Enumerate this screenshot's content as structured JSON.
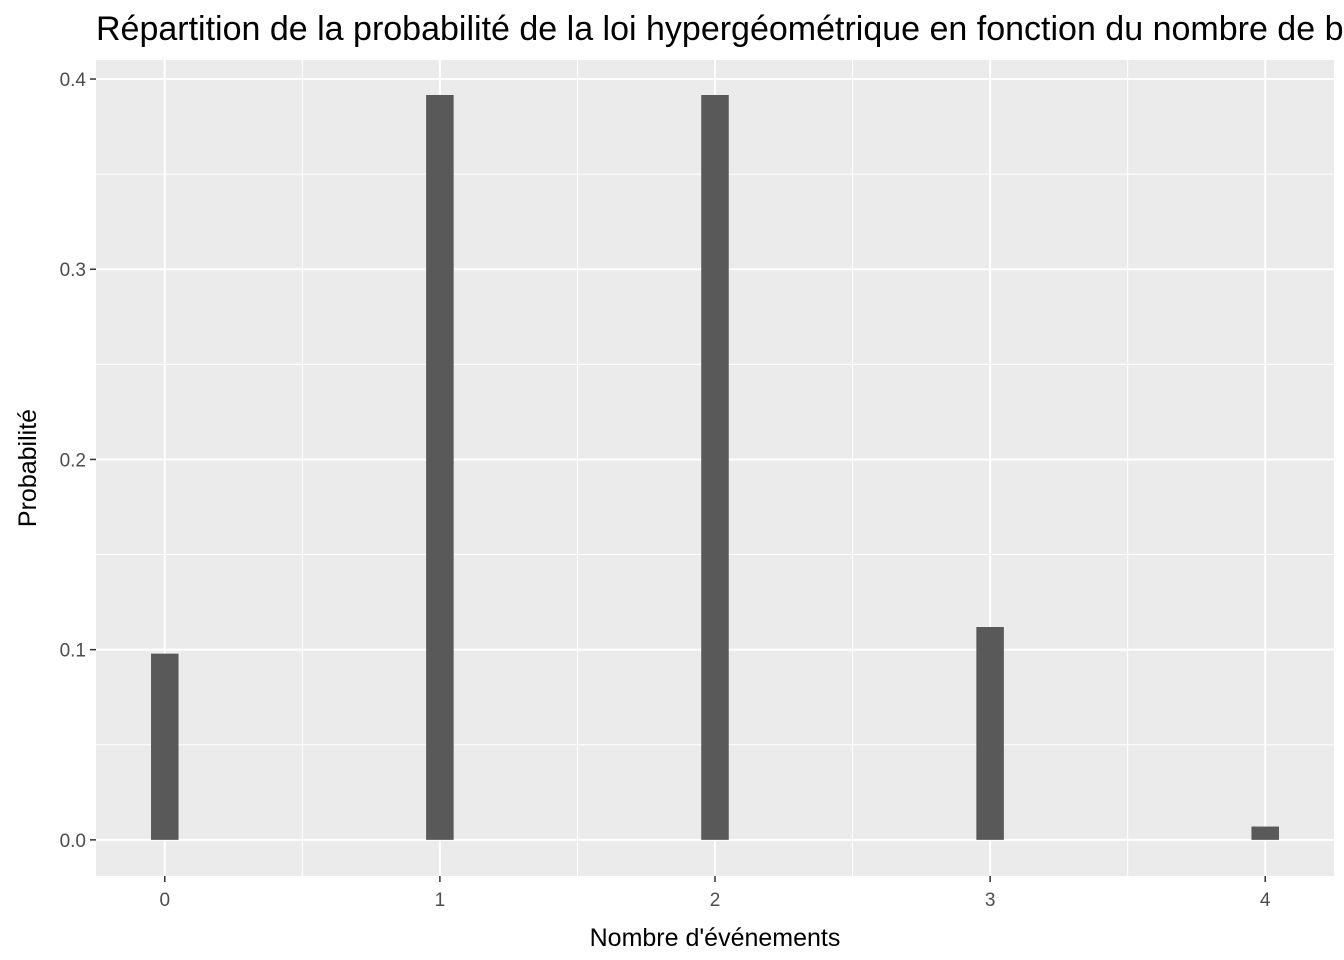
{
  "chart_data": {
    "type": "bar",
    "title": "Répartition de la probabilité de la loi hypergéométrique en fonction du nombre de bo",
    "xlabel": "Nombre d'événements",
    "ylabel": "Probabilité",
    "categories": [
      "0",
      "1",
      "2",
      "3",
      "4"
    ],
    "x": [
      0,
      1,
      2,
      3,
      4
    ],
    "values": [
      0.0979,
      0.3916,
      0.3916,
      0.1119,
      0.007
    ],
    "xlim": [
      -0.25,
      4.25
    ],
    "ylim": [
      -0.019,
      0.41
    ],
    "yticks": [
      0.0,
      0.1,
      0.2,
      0.3,
      0.4
    ],
    "ytick_labels": [
      "0.0",
      "0.1",
      "0.2",
      "0.3",
      "0.4"
    ],
    "grid": true,
    "colors": {
      "panel_background": "#ebebeb",
      "grid": "#ffffff",
      "bar": "#595959",
      "tick_text": "#4d4d4d",
      "axis_text": "#000000"
    }
  }
}
